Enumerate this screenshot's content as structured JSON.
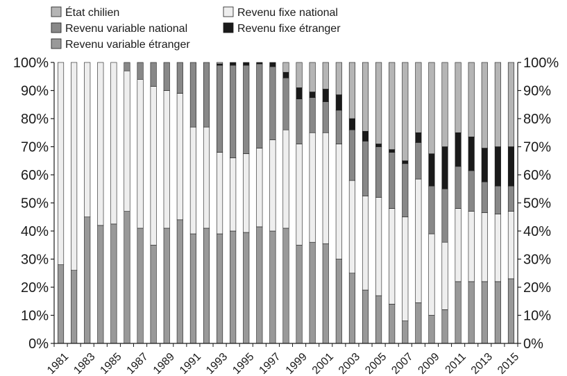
{
  "chart_data": {
    "type": "bar",
    "stacked": true,
    "normalized": true,
    "categories": [
      "1981",
      "1982",
      "1983",
      "1984",
      "1985",
      "1986",
      "1987",
      "1988",
      "1989",
      "1990",
      "1991",
      "1992",
      "1993",
      "1994",
      "1995",
      "1996",
      "1997",
      "1998",
      "1999",
      "2000",
      "2001",
      "2002",
      "2003",
      "2004",
      "2005",
      "2006",
      "2007",
      "2008",
      "2009",
      "2010",
      "2011",
      "2012",
      "2013",
      "2014",
      "2015"
    ],
    "x_tick_labels": [
      "1981",
      "1983",
      "1985",
      "1987",
      "1989",
      "1991",
      "1993",
      "1995",
      "1997",
      "1999",
      "2001",
      "2003",
      "2005",
      "2007",
      "2009",
      "2011",
      "2013",
      "2015"
    ],
    "y_tick_labels": [
      "0%",
      "10%",
      "20%",
      "30%",
      "40%",
      "50%",
      "60%",
      "70%",
      "80%",
      "90%",
      "100%"
    ],
    "ylim": [
      0,
      100
    ],
    "y_unit": "%",
    "grid": false,
    "legend_position": "top-left",
    "legend": [
      "État chilien",
      "Revenu fixe national",
      "Revenu variable national",
      "Revenu fixe étranger",
      "Revenu variable étranger"
    ],
    "series": [
      {
        "name": "Revenu variable étranger",
        "color": "#999999",
        "values": [
          28,
          26,
          45,
          42,
          42.5,
          47,
          41,
          35,
          41,
          44,
          39,
          41,
          39,
          40,
          39.5,
          41.5,
          40,
          41,
          35,
          36,
          35.5,
          30,
          25,
          19,
          17,
          14,
          8,
          14.5,
          10,
          12,
          22,
          22,
          22,
          22,
          23
        ]
      },
      {
        "name": "Revenu fixe national",
        "color": "#eeeeee",
        "values": [
          72,
          74,
          55,
          58,
          57.5,
          50,
          53,
          56.5,
          49,
          45,
          38,
          36,
          29,
          26,
          28,
          28,
          32.5,
          35,
          36,
          39,
          39.5,
          41,
          33,
          33.5,
          35,
          34,
          37,
          44,
          29,
          24,
          26,
          25,
          24.5,
          24,
          24
        ]
      },
      {
        "name": "Revenu variable national",
        "color": "#888888",
        "values": [
          0,
          0,
          0,
          0,
          0,
          3,
          6,
          8.5,
          10,
          11,
          23,
          23,
          31,
          33,
          31.5,
          30,
          26,
          18.5,
          16,
          12.5,
          11,
          12,
          18,
          19.5,
          18,
          20,
          19,
          13,
          17,
          19,
          15,
          14.5,
          11,
          10,
          9
        ]
      },
      {
        "name": "Revenu fixe étranger",
        "color": "#1a1a1a",
        "values": [
          0,
          0,
          0,
          0,
          0,
          0,
          0,
          0,
          0,
          0,
          0,
          0,
          0.5,
          1,
          1,
          0.5,
          1.5,
          2,
          4,
          2,
          4.5,
          5.5,
          4,
          3.5,
          1,
          1,
          1,
          3.5,
          11.5,
          15,
          12,
          12,
          12,
          14,
          14
        ]
      },
      {
        "name": "État chilien",
        "color": "#b5b5b5",
        "values": [
          0,
          0,
          0,
          0,
          0,
          0,
          0,
          0,
          0,
          0,
          0,
          0,
          0.5,
          0,
          0,
          0,
          0,
          3.5,
          9,
          10.5,
          9.5,
          11.5,
          20,
          24.5,
          29,
          31,
          35,
          25,
          32.5,
          30,
          25,
          26.5,
          30.5,
          30,
          30
        ]
      }
    ]
  }
}
